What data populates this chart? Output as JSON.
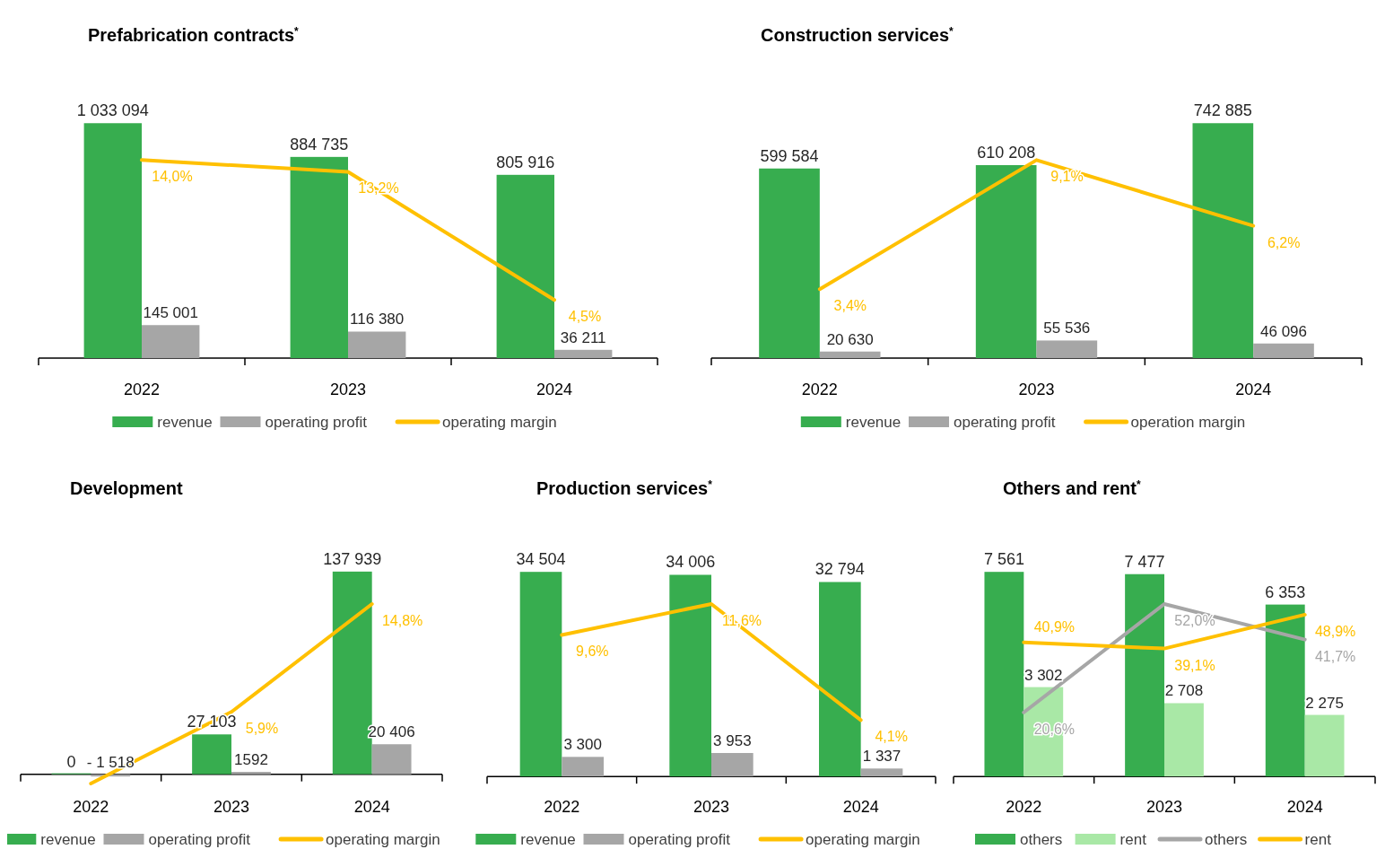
{
  "chart_data": [
    {
      "type": "bar",
      "title": "Prefabrication contracts$^{*}$",
      "categories": [
        "2022",
        "2023",
        "2024"
      ],
      "tick_labels": "x",
      "legend": "bottom",
      "series": [
        {
          "name": "revenue",
          "color": "#37ad4f",
          "values": [
            1033094,
            884735,
            805916
          ],
          "value_labels": [
            "1 033 094",
            "884 735",
            "805 916"
          ]
        },
        {
          "name": "operating profit",
          "color": "#a6a6a6",
          "values": [
            145001,
            116380,
            36211
          ],
          "value_labels": [
            "145 001",
            "116 380",
            "36 211"
          ]
        },
        {
          "name": "operating margin",
          "type": "line",
          "axis": "y2",
          "color": "#ffc000",
          "values": [
            14.0,
            13.2,
            4.5
          ],
          "value_labels": [
            "14,0%",
            "13,2%",
            "4,5%"
          ]
        }
      ]
    },
    {
      "type": "bar",
      "title": "Construction services$^{*}$",
      "categories": [
        "2022",
        "2023",
        "2024"
      ],
      "tick_labels": "x",
      "legend": "bottom",
      "series": [
        {
          "name": "revenue",
          "color": "#37ad4f",
          "values": [
            599584,
            610208,
            742885
          ],
          "value_labels": [
            "599 584",
            "610 208",
            "742 885"
          ]
        },
        {
          "name": "operating profit",
          "color": "#a6a6a6",
          "values": [
            20630,
            55536,
            46096
          ],
          "value_labels": [
            "20 630",
            "55 536",
            "46 096"
          ]
        },
        {
          "name": "operation margin",
          "type": "line",
          "axis": "y2",
          "color": "#ffc000",
          "values": [
            3.4,
            9.1,
            6.2
          ],
          "value_labels": [
            "3,4%",
            "9,1%",
            "6,2%"
          ]
        }
      ]
    },
    {
      "type": "bar",
      "title": "Development",
      "categories": [
        "2022",
        "2023",
        "2024"
      ],
      "tick_labels": "x",
      "legend": "bottom",
      "series": [
        {
          "name": "revenue",
          "color": "#37ad4f",
          "values": [
            0,
            27103,
            137939
          ],
          "value_labels": [
            "0",
            "27 103",
            "137 939"
          ]
        },
        {
          "name": "operating profit",
          "color": "#a6a6a6",
          "values": [
            -1518,
            1592,
            20406
          ],
          "value_labels": [
            "- 1 518",
            "1592",
            "20 406"
          ]
        },
        {
          "name": "operating margin",
          "type": "line",
          "axis": "y2",
          "color": "#ffc000",
          "values": [
            0,
            5.9,
            14.8
          ],
          "value_labels": [
            null,
            "5,9%",
            "14,8%"
          ]
        }
      ]
    },
    {
      "type": "bar",
      "title": "Production services$^{*}$",
      "categories": [
        "2022",
        "2023",
        "2024"
      ],
      "tick_labels": "x",
      "legend": "bottom",
      "series": [
        {
          "name": "revenue",
          "color": "#37ad4f",
          "values": [
            34504,
            34006,
            32794
          ],
          "value_labels": [
            "34 504",
            "34 006",
            "32 794"
          ]
        },
        {
          "name": "operating profit",
          "color": "#a6a6a6",
          "values": [
            3300,
            3953,
            1337
          ],
          "value_labels": [
            "3 300",
            "3 953",
            "1 337"
          ]
        },
        {
          "name": "operating margin",
          "type": "line",
          "axis": "y2",
          "color": "#ffc000",
          "values": [
            9.6,
            11.6,
            4.1
          ],
          "value_labels": [
            "9,6%",
            "11,6%",
            "4,1%"
          ]
        }
      ]
    },
    {
      "type": "bar",
      "title": "Others and rent$^{*}$",
      "categories": [
        "2022",
        "2023",
        "2024"
      ],
      "tick_labels": "x",
      "legend": "bottom",
      "series": [
        {
          "name": "others",
          "color": "#37ad4f",
          "values": [
            7561,
            7477,
            6353
          ],
          "value_labels": [
            "7 561",
            "7 477",
            "6 353"
          ]
        },
        {
          "name": "rent",
          "color": "#a9e8a6",
          "values": [
            3302,
            2708,
            2275
          ],
          "value_labels": [
            "3 302",
            "2 708",
            "2 275"
          ]
        },
        {
          "name": "others",
          "type": "line",
          "axis": "y2",
          "color": "#a6a6a6",
          "values": [
            20.6,
            52.0,
            41.7
          ],
          "value_labels": [
            "20,6%",
            "52,0%",
            "41,7%"
          ]
        },
        {
          "name": "rent",
          "type": "line",
          "axis": "y2",
          "color": "#ffc000",
          "values": [
            40.9,
            39.1,
            48.9
          ],
          "value_labels": [
            "40,9%",
            "39,1%",
            "48,9%"
          ]
        }
      ]
    }
  ]
}
